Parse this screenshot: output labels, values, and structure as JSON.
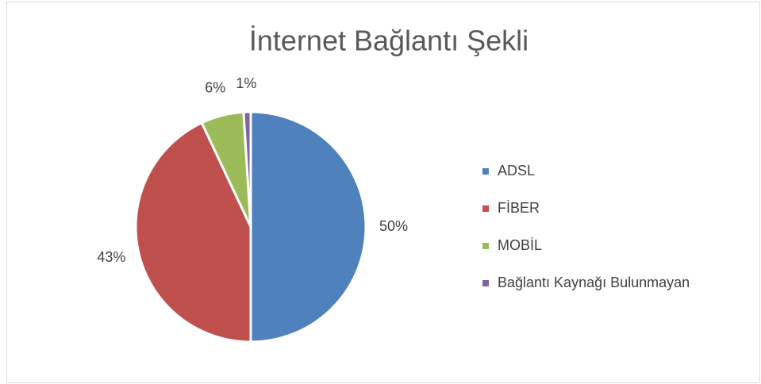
{
  "chart_data": {
    "type": "pie",
    "title": "İnternet Bağlantı Şekli",
    "categories": [
      "ADSL",
      "FİBER",
      "MOBİL",
      "Bağlantı Kaynağı Bulunmayan"
    ],
    "values": [
      50,
      43,
      6,
      1
    ],
    "value_labels": [
      "50%",
      "43%",
      "6%",
      "1%"
    ],
    "colors": [
      "#4f81bd",
      "#c0504d",
      "#9bbb59",
      "#8064a2"
    ],
    "legend": "right"
  }
}
